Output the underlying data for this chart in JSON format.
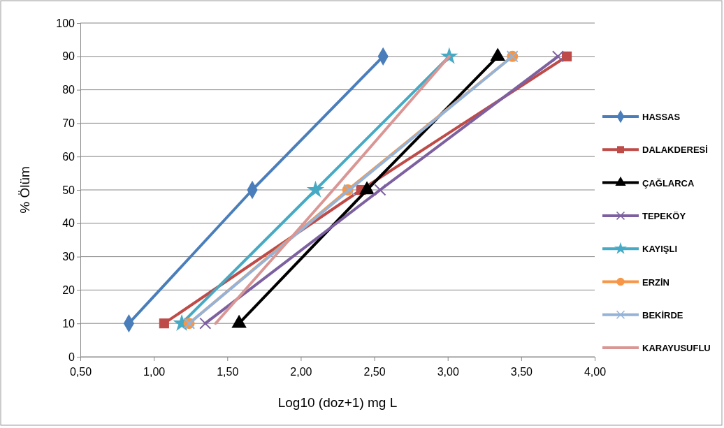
{
  "chart_data": {
    "type": "line",
    "xlabel": "Log10 (doz+1) mg L",
    "ylabel": "% Ölüm",
    "xlim": [
      0.5,
      4
    ],
    "xticks": [
      {
        "value": 0.5,
        "label": "0,50"
      },
      {
        "value": 1,
        "label": "1,00"
      },
      {
        "value": 1.5,
        "label": "1,50"
      },
      {
        "value": 2,
        "label": "2,00"
      },
      {
        "value": 2.5,
        "label": "2,50"
      },
      {
        "value": 3,
        "label": "3,00"
      },
      {
        "value": 3.5,
        "label": "3,50"
      },
      {
        "value": 4,
        "label": "4,00"
      }
    ],
    "ylim": [
      0,
      100
    ],
    "yticks": [
      0,
      10,
      20,
      30,
      40,
      50,
      60,
      70,
      80,
      90,
      100
    ],
    "grid": "y",
    "legend": "right",
    "series": [
      {
        "name": "HASSAS",
        "color": "#4a7ebb",
        "marker": "diamond",
        "x": [
          0.83,
          1.67,
          2.56
        ],
        "values": [
          10,
          50,
          90
        ]
      },
      {
        "name": "DALAKDERESİ",
        "color": "#be4b48",
        "marker": "square",
        "x": [
          1.07,
          2.41,
          3.81
        ],
        "values": [
          10,
          50,
          90
        ]
      },
      {
        "name": "ÇAĞLARCA",
        "color": "#000000",
        "marker": "triangle",
        "x": [
          1.58,
          2.45,
          3.34
        ],
        "values": [
          10,
          50,
          90
        ]
      },
      {
        "name": "TEPEKÖY",
        "color": "#7d60a0",
        "marker": "cross",
        "x": [
          1.35,
          2.54,
          3.75
        ],
        "values": [
          10,
          50,
          90
        ]
      },
      {
        "name": "KAYIŞLI",
        "color": "#46aac5",
        "marker": "star",
        "x": [
          1.19,
          2.1,
          3.01
        ],
        "values": [
          10,
          50,
          90
        ]
      },
      {
        "name": "ERZİN",
        "color": "#f79646",
        "marker": "circle",
        "x": [
          1.24,
          2.32,
          3.44
        ],
        "values": [
          10,
          50,
          90
        ]
      },
      {
        "name": "BEKİRDE",
        "color": "#95b3d7",
        "marker": "cross",
        "x": [
          1.24,
          2.33,
          3.44
        ],
        "values": [
          10,
          50,
          90
        ]
      },
      {
        "name": "KARAYUSUFLU",
        "color": "#d99694",
        "marker": "none",
        "x": [
          1.42,
          2.22,
          3.01
        ],
        "values": [
          10,
          50,
          90
        ]
      }
    ]
  }
}
